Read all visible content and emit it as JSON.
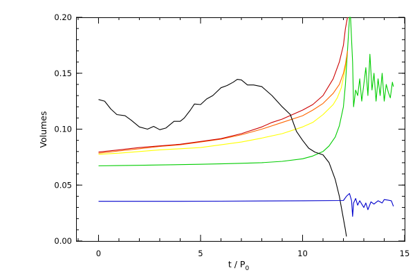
{
  "chart_data": {
    "type": "line",
    "title": "",
    "xlabel_main": "t / P",
    "xlabel_sub": "0",
    "ylabel": "Volumes",
    "xlim": [
      -1.1,
      15
    ],
    "ylim": [
      0.0,
      0.2
    ],
    "grid": false,
    "legend": "none",
    "x_ticks": [
      0,
      5,
      10,
      15
    ],
    "x_tick_labels": [
      "0",
      "5",
      "10",
      "15"
    ],
    "x_minor_step": 1,
    "y_ticks": [
      0.0,
      0.05,
      0.1,
      0.15,
      0.2
    ],
    "y_tick_labels": [
      "0.00",
      "0.05",
      "0.10",
      "0.15",
      "0.20"
    ],
    "y_minor_step": 0.01,
    "series": [
      {
        "color": "#00cc00",
        "points": [
          [
            0,
            0.0672
          ],
          [
            1,
            0.0674
          ],
          [
            2,
            0.0677
          ],
          [
            3,
            0.068
          ],
          [
            4,
            0.0683
          ],
          [
            5,
            0.0686
          ],
          [
            6,
            0.069
          ],
          [
            7,
            0.0695
          ],
          [
            8,
            0.07
          ],
          [
            9,
            0.0712
          ],
          [
            10,
            0.0735
          ],
          [
            10.5,
            0.076
          ],
          [
            11,
            0.08
          ],
          [
            11.3,
            0.085
          ],
          [
            11.6,
            0.093
          ],
          [
            11.8,
            0.103
          ],
          [
            12.0,
            0.12
          ],
          [
            12.1,
            0.14
          ],
          [
            12.2,
            0.17
          ],
          [
            12.3,
            0.2
          ],
          [
            12.35,
            0.2
          ],
          [
            12.45,
            0.16
          ],
          [
            12.5,
            0.12
          ],
          [
            12.6,
            0.135
          ],
          [
            12.7,
            0.13
          ],
          [
            12.8,
            0.145
          ],
          [
            12.9,
            0.125
          ],
          [
            13.0,
            0.14
          ],
          [
            13.1,
            0.155
          ],
          [
            13.2,
            0.13
          ],
          [
            13.3,
            0.167
          ],
          [
            13.4,
            0.135
          ],
          [
            13.5,
            0.15
          ],
          [
            13.6,
            0.125
          ],
          [
            13.7,
            0.145
          ],
          [
            13.8,
            0.13
          ],
          [
            13.9,
            0.15
          ],
          [
            14.0,
            0.125
          ],
          [
            14.1,
            0.14
          ],
          [
            14.2,
            0.133
          ],
          [
            14.3,
            0.128
          ],
          [
            14.4,
            0.142
          ],
          [
            14.45,
            0.138
          ]
        ]
      },
      {
        "color": "#ffff00",
        "points": [
          [
            0,
            0.0775
          ],
          [
            1,
            0.0785
          ],
          [
            2,
            0.08
          ],
          [
            3,
            0.0815
          ],
          [
            4,
            0.0825
          ],
          [
            5,
            0.0835
          ],
          [
            6,
            0.086
          ],
          [
            7,
            0.0885
          ],
          [
            8,
            0.092
          ],
          [
            9,
            0.096
          ],
          [
            10,
            0.102
          ],
          [
            10.5,
            0.106
          ],
          [
            11,
            0.113
          ],
          [
            11.5,
            0.122
          ],
          [
            11.7,
            0.128
          ],
          [
            11.9,
            0.137
          ],
          [
            12.1,
            0.155
          ],
          [
            12.2,
            0.17
          ]
        ]
      },
      {
        "color": "#ff6600",
        "points": [
          [
            0,
            0.0785
          ],
          [
            1,
            0.0805
          ],
          [
            2,
            0.0825
          ],
          [
            3,
            0.0845
          ],
          [
            4,
            0.086
          ],
          [
            5,
            0.0885
          ],
          [
            6,
            0.091
          ],
          [
            7,
            0.095
          ],
          [
            8,
            0.1
          ],
          [
            9,
            0.106
          ],
          [
            10,
            0.112
          ],
          [
            10.5,
            0.117
          ],
          [
            11,
            0.123
          ],
          [
            11.5,
            0.132
          ],
          [
            11.8,
            0.14
          ],
          [
            12.0,
            0.15
          ],
          [
            12.1,
            0.158
          ],
          [
            12.2,
            0.17
          ]
        ]
      },
      {
        "color": "#cc0000",
        "points": [
          [
            0,
            0.0795
          ],
          [
            1,
            0.0815
          ],
          [
            2,
            0.0835
          ],
          [
            3,
            0.085
          ],
          [
            4,
            0.0865
          ],
          [
            5,
            0.089
          ],
          [
            6,
            0.0915
          ],
          [
            7,
            0.096
          ],
          [
            8,
            0.102
          ],
          [
            8.5,
            0.106
          ],
          [
            9,
            0.109
          ],
          [
            9.5,
            0.113
          ],
          [
            10,
            0.117
          ],
          [
            10.5,
            0.122
          ],
          [
            11,
            0.13
          ],
          [
            11.5,
            0.145
          ],
          [
            11.8,
            0.16
          ],
          [
            12.0,
            0.175
          ],
          [
            12.1,
            0.19
          ],
          [
            12.2,
            0.2
          ]
        ]
      },
      {
        "color": "#000000",
        "points": [
          [
            0,
            0.1265
          ],
          [
            0.3,
            0.125
          ],
          [
            0.6,
            0.118
          ],
          [
            0.9,
            0.113
          ],
          [
            1.3,
            0.112
          ],
          [
            1.6,
            0.108
          ],
          [
            2.0,
            0.102
          ],
          [
            2.4,
            0.1
          ],
          [
            2.7,
            0.1025
          ],
          [
            3.0,
            0.0995
          ],
          [
            3.3,
            0.101
          ],
          [
            3.7,
            0.107
          ],
          [
            4.0,
            0.107
          ],
          [
            4.2,
            0.11
          ],
          [
            4.5,
            0.117
          ],
          [
            4.7,
            0.1225
          ],
          [
            5.0,
            0.122
          ],
          [
            5.3,
            0.127
          ],
          [
            5.6,
            0.13
          ],
          [
            6.0,
            0.137
          ],
          [
            6.3,
            0.139
          ],
          [
            6.6,
            0.142
          ],
          [
            6.8,
            0.1445
          ],
          [
            7.0,
            0.144
          ],
          [
            7.3,
            0.1395
          ],
          [
            7.6,
            0.1395
          ],
          [
            8.0,
            0.138
          ],
          [
            8.5,
            0.13
          ],
          [
            9.0,
            0.12
          ],
          [
            9.4,
            0.113
          ],
          [
            9.7,
            0.098
          ],
          [
            10.0,
            0.09
          ],
          [
            10.3,
            0.083
          ],
          [
            10.6,
            0.0795
          ],
          [
            11.0,
            0.077
          ],
          [
            11.3,
            0.07
          ],
          [
            11.6,
            0.055
          ],
          [
            11.8,
            0.04
          ],
          [
            11.95,
            0.025
          ],
          [
            12.1,
            0.01
          ],
          [
            12.15,
            0.004
          ]
        ]
      },
      {
        "color": "#0000cc",
        "points": [
          [
            0,
            0.0355
          ],
          [
            2,
            0.0355
          ],
          [
            4,
            0.0355
          ],
          [
            6,
            0.0356
          ],
          [
            8,
            0.0358
          ],
          [
            10,
            0.036
          ],
          [
            12.0,
            0.0362
          ],
          [
            12.15,
            0.04
          ],
          [
            12.3,
            0.0425
          ],
          [
            12.4,
            0.036
          ],
          [
            12.45,
            0.022
          ],
          [
            12.5,
            0.034
          ],
          [
            12.6,
            0.038
          ],
          [
            12.7,
            0.032
          ],
          [
            12.8,
            0.036
          ],
          [
            12.9,
            0.033
          ],
          [
            13.0,
            0.03
          ],
          [
            13.1,
            0.034
          ],
          [
            13.2,
            0.028
          ],
          [
            13.35,
            0.035
          ],
          [
            13.5,
            0.033
          ],
          [
            13.7,
            0.036
          ],
          [
            13.9,
            0.034
          ],
          [
            14.0,
            0.037
          ],
          [
            14.2,
            0.0365
          ],
          [
            14.35,
            0.036
          ],
          [
            14.45,
            0.031
          ]
        ]
      }
    ]
  }
}
